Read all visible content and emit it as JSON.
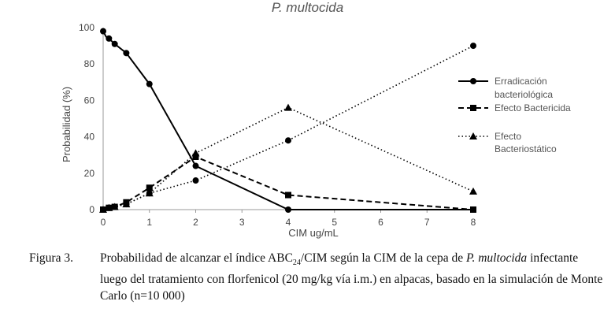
{
  "chart_data": {
    "type": "line",
    "title": "P. multocida",
    "xlabel": "CIM ug/mL",
    "ylabel": "Probabilidad (%)",
    "xlim": [
      0,
      8
    ],
    "ylim": [
      0,
      100
    ],
    "x_ticks": [
      "0",
      "1",
      "2",
      "3",
      "4",
      "5",
      "6",
      "7",
      "8"
    ],
    "y_ticks": [
      "0",
      "20",
      "40",
      "60",
      "80",
      "100"
    ],
    "grid": false,
    "legend_position": "right",
    "series": [
      {
        "name": "Erradicación bacteriológica",
        "line_style": "solid",
        "marker": "circle",
        "x": [
          0,
          0.0625,
          0.125,
          0.25,
          0.5,
          1,
          2,
          4,
          8
        ],
        "y": [
          98,
          95,
          94,
          91,
          86,
          69,
          24,
          0,
          0
        ]
      },
      {
        "name": "Efecto Bactericida",
        "line_style": "dashed",
        "marker": "square",
        "x": [
          0,
          0.0625,
          0.125,
          0.25,
          0.5,
          1,
          2,
          4,
          8
        ],
        "y": [
          0,
          0.5,
          1,
          1.5,
          4,
          12,
          29,
          8,
          0
        ]
      },
      {
        "name": "Efecto Bacteriostático",
        "line_style": "dotted",
        "marker": "triangle",
        "x": [
          0,
          0.0625,
          0.125,
          0.25,
          0.5,
          1,
          2,
          4,
          8
        ],
        "y": [
          0,
          0.5,
          1,
          1.5,
          3,
          9,
          31,
          56,
          10
        ]
      },
      {
        "name": "",
        "line_style": "dotted",
        "marker": "circle",
        "x": [
          0,
          0.0625,
          0.125,
          0.25,
          0.5,
          1,
          2,
          4,
          8
        ],
        "y": [
          0,
          0.5,
          1,
          1.5,
          3,
          9,
          16,
          38,
          90
        ]
      }
    ]
  },
  "legend": {
    "erradicacion_line1": "Erradicación",
    "erradicacion_line2": "bacteriológica",
    "bactericida": "Efecto Bactericida",
    "bacteriostatico_line1": "Efecto",
    "bacteriostatico_line2": "Bacteriostático"
  },
  "caption": {
    "label": "Figura 3.",
    "text_1": "Probabilidad de alcanzar el índice ABC",
    "sub": "24",
    "text_2": "/CIM según la CIM de la cepa de ",
    "organism": "P. multocida",
    "text_3": " infectante luego del tratamiento con florfenicol (20 mg/kg vía i.m.) en alpacas, basado en la simulación de Monte Carlo (n=10 000)"
  }
}
